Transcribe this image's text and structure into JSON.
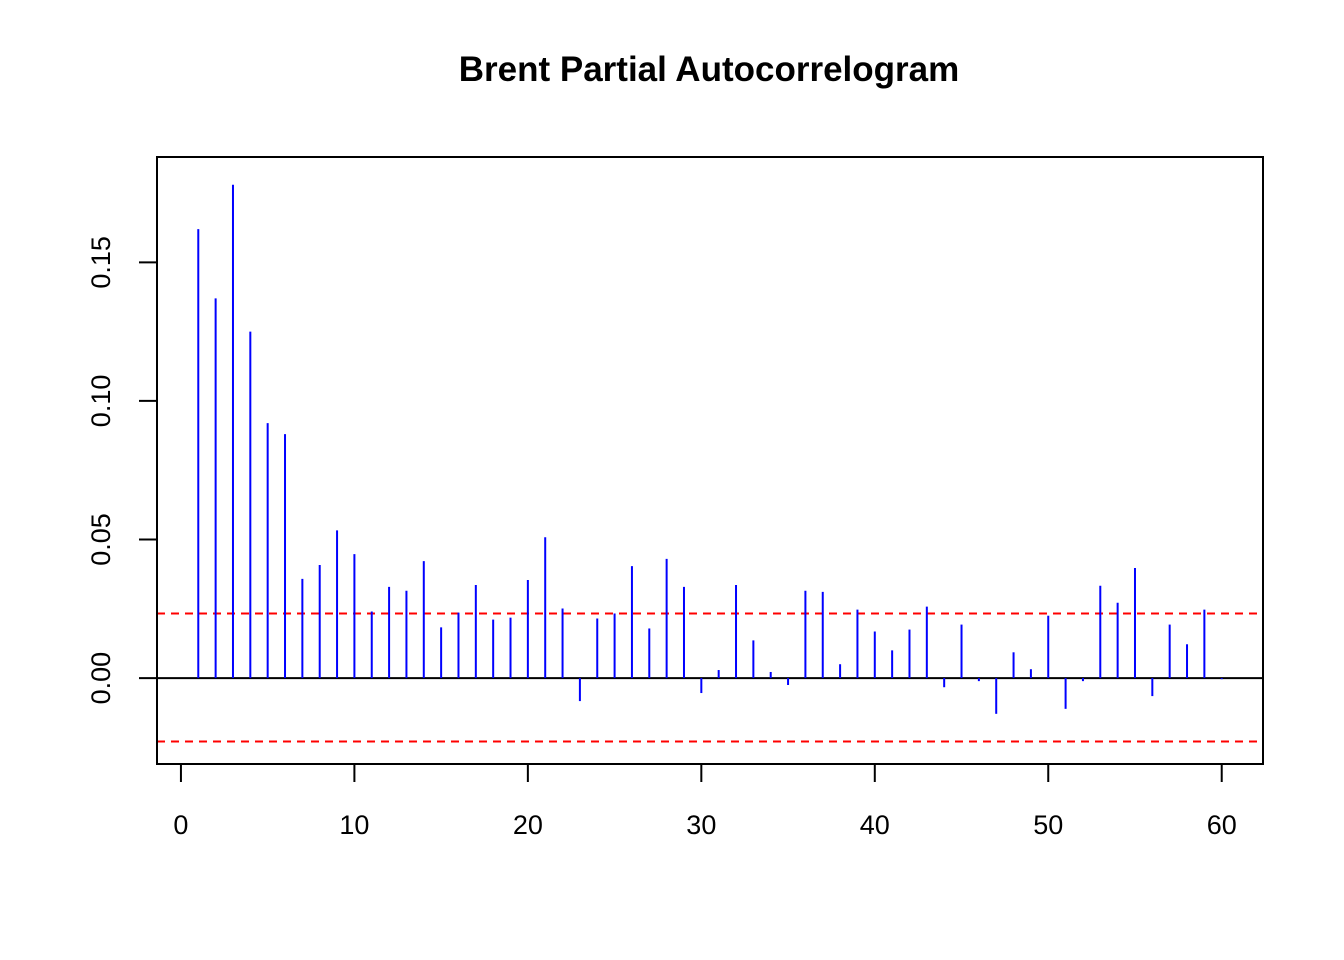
{
  "chart_data": {
    "type": "bar",
    "title": "Brent Partial Autocorrelogram",
    "xlabel": "",
    "ylabel": "",
    "xlim": [
      -1.38,
      62.38
    ],
    "ylim": [
      -0.031,
      0.188
    ],
    "x_ticks": [
      0,
      10,
      20,
      30,
      40,
      50,
      60
    ],
    "x_tick_labels": [
      "0",
      "10",
      "20",
      "30",
      "40",
      "50",
      "60"
    ],
    "y_ticks": [
      0.0,
      0.05,
      0.1,
      0.15
    ],
    "y_tick_labels": [
      "0.00",
      "0.05",
      "0.10",
      "0.15"
    ],
    "confidence_bounds": [
      0.0233,
      -0.0229
    ],
    "grid": false,
    "colors": {
      "bars": "#0000ff",
      "bounds": "#ff0000",
      "zero_line": "#000000",
      "frame": "#000000"
    },
    "series": [
      {
        "x": [
          1,
          2,
          3,
          4,
          5,
          6,
          7,
          8,
          9,
          10,
          11,
          12,
          13,
          14,
          15,
          16,
          17,
          18,
          19,
          20,
          21,
          22,
          23,
          24,
          25,
          26,
          27,
          28,
          29,
          30,
          31,
          32,
          33,
          34,
          35,
          36,
          37,
          38,
          39,
          40,
          41,
          42,
          43,
          44,
          45,
          46,
          47,
          48,
          49,
          50,
          51,
          52,
          53,
          54,
          55,
          56,
          57,
          58,
          59,
          60
        ],
        "values": [
          0.162,
          0.137,
          0.178,
          0.125,
          0.092,
          0.088,
          0.0358,
          0.0408,
          0.0533,
          0.0447,
          0.024,
          0.0329,
          0.0315,
          0.0422,
          0.0183,
          0.0236,
          0.0336,
          0.0211,
          0.0218,
          0.0354,
          0.0508,
          0.0251,
          -0.0083,
          0.0215,
          0.0233,
          0.0404,
          0.0179,
          0.043,
          0.0329,
          -0.0054,
          0.0029,
          0.0336,
          0.0136,
          0.0022,
          -0.0025,
          0.0315,
          0.0311,
          0.005,
          0.0247,
          0.0168,
          0.01,
          0.0175,
          0.0258,
          -0.0033,
          0.0193,
          -0.0011,
          -0.0129,
          0.0093,
          0.0032,
          0.0225,
          -0.0111,
          -0.0011,
          0.0333,
          0.0272,
          0.0397,
          -0.0065,
          0.0193,
          0.0122,
          0.0247,
          -0.0004
        ]
      }
    ]
  }
}
